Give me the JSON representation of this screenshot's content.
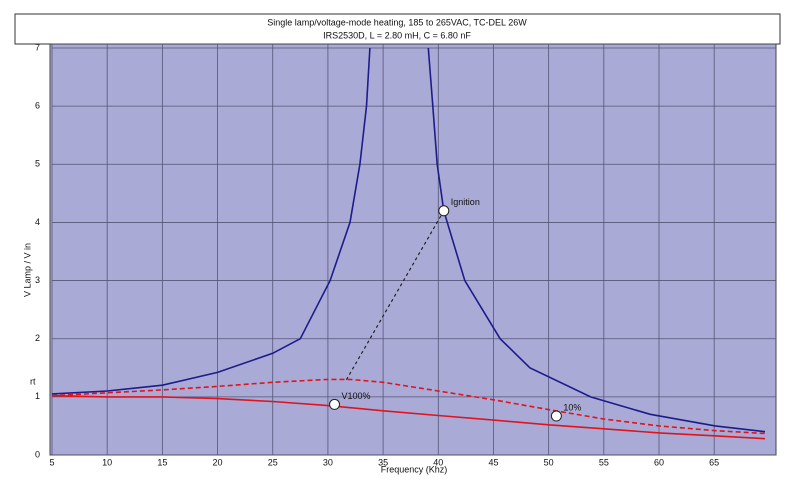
{
  "chart_data": {
    "type": "line",
    "title": "Single lamp/voltage-mode heating, 185 to 265VAC, TC-DEL 26W",
    "subtitle": "IRS2530D, L = 2.80 mH, C = 6.80 nF",
    "x_label": "Frequency (Khz)",
    "y_label": "V Lamp / V in",
    "side_note": "rt",
    "xlim": [
      5,
      70.6
    ],
    "ylim": [
      0,
      7
    ],
    "xticks": [
      5,
      10,
      15,
      20,
      25,
      30,
      35,
      40,
      45,
      50,
      55,
      60,
      65
    ],
    "yticks": [
      0,
      1,
      2,
      3,
      4,
      5,
      6,
      7
    ],
    "grid": true,
    "background": "#aaaad6",
    "series": [
      {
        "color": "#1c1c8c",
        "dash": false,
        "x": [
          5,
          10,
          15,
          20,
          25,
          27.5,
          30.2,
          32.0,
          32.9,
          33.5,
          33.8,
          null,
          39.1,
          39.5,
          39.9,
          40.5,
          42.4,
          45.6,
          48.3,
          53.8,
          59.2,
          65.1,
          69.6
        ],
        "values": [
          1.05,
          1.1,
          1.2,
          1.42,
          1.75,
          2.0,
          3.0,
          4.0,
          5.0,
          6.0,
          7.0,
          null,
          7.0,
          6.0,
          5.0,
          4.2,
          3.0,
          2.0,
          1.5,
          1.0,
          0.7,
          0.5,
          0.4
        ]
      },
      {
        "color": "#e0141e",
        "dash": true,
        "x": [
          5,
          10,
          15,
          20,
          25,
          30,
          32,
          35,
          40,
          45,
          50,
          55,
          60,
          65,
          69.6
        ],
        "values": [
          1.02,
          1.07,
          1.12,
          1.18,
          1.25,
          1.3,
          1.3,
          1.25,
          1.1,
          0.95,
          0.78,
          0.62,
          0.5,
          0.42,
          0.37
        ]
      },
      {
        "color": "#e0141e",
        "dash": false,
        "x": [
          5,
          10,
          15,
          20,
          25,
          30,
          35,
          40,
          45,
          50,
          55,
          60,
          65,
          69.6
        ],
        "values": [
          1.02,
          1.0,
          1.0,
          0.97,
          0.92,
          0.85,
          0.76,
          0.68,
          0.6,
          0.52,
          0.45,
          0.38,
          0.33,
          0.28
        ]
      }
    ],
    "points": [
      {
        "x": 40.5,
        "y": 4.2,
        "label": "Ignition"
      },
      {
        "x": 30.6,
        "y": 0.87,
        "label": "V100%"
      },
      {
        "x": 50.7,
        "y": 0.67,
        "label": "10%"
      }
    ]
  }
}
